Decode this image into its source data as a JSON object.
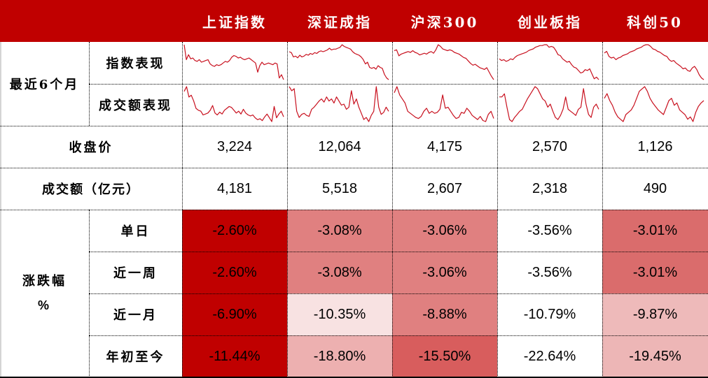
{
  "header": {
    "columns": [
      "上证指数",
      "深证成指",
      "沪深300",
      "创业板指",
      "科创50"
    ]
  },
  "recent6m": {
    "label": "最近6个月",
    "index_label": "指数表现",
    "volume_label": "成交额表现"
  },
  "rows": {
    "close": {
      "label": "收盘价",
      "values": [
        "3,224",
        "12,064",
        "4,175",
        "2,570",
        "1,126"
      ]
    },
    "turnover": {
      "label": "成交额（亿元）",
      "values": [
        "4,181",
        "5,518",
        "2,607",
        "2,318",
        "490"
      ]
    }
  },
  "change": {
    "label_line1": "涨跌幅",
    "label_line2": "%",
    "periods": [
      {
        "label": "单日",
        "values": [
          "-2.60%",
          "-3.08%",
          "-3.06%",
          "-3.56%",
          "-3.01%"
        ],
        "colors": [
          "#C00000",
          "#E08080",
          "#E08080",
          "#FFFFFF",
          "#DA6C6C"
        ]
      },
      {
        "label": "近一周",
        "values": [
          "-2.60%",
          "-3.08%",
          "-3.06%",
          "-3.56%",
          "-3.01%"
        ],
        "colors": [
          "#C00000",
          "#E08080",
          "#E08080",
          "#FFFFFF",
          "#DA6C6C"
        ]
      },
      {
        "label": "近一月",
        "values": [
          "-6.90%",
          "-10.35%",
          "-8.88%",
          "-10.79%",
          "-9.87%"
        ],
        "colors": [
          "#C00000",
          "#F8E2E2",
          "#E08080",
          "#FFFFFF",
          "#EEBABA"
        ]
      },
      {
        "label": "年初至今",
        "values": [
          "-11.44%",
          "-18.80%",
          "-15.50%",
          "-22.64%",
          "-19.45%"
        ],
        "colors": [
          "#C00000",
          "#EDB0B0",
          "#D85D5D",
          "#FFFFFF",
          "#EDB6B6"
        ]
      }
    ]
  },
  "colors": {
    "header_bg": "#C00000",
    "sparkline": "#C8101E"
  },
  "sparklines": {
    "index": [
      [
        2,
        20,
        14,
        19,
        18,
        21,
        22,
        20,
        23,
        22,
        21,
        20,
        25,
        27,
        28,
        26,
        27,
        26,
        24,
        22,
        23,
        21,
        17,
        15,
        16,
        18,
        17,
        19,
        20,
        19,
        18,
        20,
        22,
        24,
        35,
        27,
        23,
        26,
        25,
        24,
        25,
        26,
        24,
        25,
        42,
        38,
        44
      ],
      [
        12,
        13,
        18,
        17,
        19,
        16,
        18,
        17,
        15,
        16,
        14,
        15,
        13,
        14,
        12,
        11,
        12,
        11,
        10,
        8,
        10,
        9,
        9,
        8,
        7,
        4,
        6,
        7,
        8,
        9,
        12,
        14,
        15,
        16,
        18,
        21,
        26,
        24,
        30,
        31,
        30,
        32,
        28,
        30,
        31,
        38,
        42,
        44
      ],
      [
        10,
        9,
        16,
        14,
        13,
        12,
        11,
        12,
        10,
        12,
        13,
        15,
        14,
        13,
        14,
        12,
        11,
        13,
        9,
        3,
        5,
        8,
        9,
        10,
        9,
        10,
        12,
        13,
        14,
        16,
        18,
        19,
        22,
        25,
        27,
        26,
        28,
        30,
        31,
        32,
        30,
        35,
        40,
        44
      ],
      [
        20,
        22,
        21,
        23,
        22,
        20,
        21,
        18,
        16,
        15,
        14,
        13,
        12,
        10,
        9,
        8,
        6,
        5,
        4,
        4,
        3,
        3,
        6,
        5,
        6,
        10,
        15,
        16,
        20,
        22,
        24,
        23,
        27,
        30,
        31,
        34,
        37,
        36,
        33,
        34,
        32,
        38,
        44,
        42,
        45
      ],
      [
        14,
        12,
        18,
        20,
        19,
        22,
        20,
        19,
        17,
        16,
        15,
        13,
        12,
        11,
        9,
        8,
        7,
        5,
        4,
        4,
        6,
        9,
        10,
        12,
        13,
        15,
        17,
        18,
        22,
        24,
        23,
        26,
        28,
        30,
        33,
        32,
        35,
        36,
        32,
        30,
        34,
        40,
        44,
        46
      ]
    ],
    "volume": [
      [
        10,
        5,
        16,
        14,
        20,
        28,
        30,
        31,
        35,
        34,
        33,
        30,
        25,
        33,
        35,
        32,
        34,
        30,
        28,
        26,
        27,
        30,
        33,
        31,
        34,
        29,
        33,
        35,
        36,
        35,
        38,
        40,
        39,
        41,
        37,
        34,
        38,
        42,
        26,
        38,
        34,
        31,
        37
      ],
      [
        8,
        12,
        10,
        32,
        38,
        35,
        34,
        36,
        37,
        30,
        28,
        25,
        22,
        20,
        23,
        18,
        22,
        20,
        24,
        18,
        22,
        26,
        25,
        30,
        28,
        12,
        25,
        20,
        28,
        34,
        40,
        38,
        42,
        36,
        32,
        8,
        28,
        35,
        33,
        28,
        32
      ],
      [
        10,
        4,
        12,
        16,
        20,
        28,
        30,
        32,
        34,
        35,
        33,
        28,
        25,
        30,
        28,
        30,
        29,
        26,
        12,
        25,
        24,
        28,
        32,
        35,
        34,
        29,
        30,
        25,
        28,
        32,
        34,
        36,
        33,
        37,
        38,
        31,
        28,
        35
      ],
      [
        18,
        18,
        15,
        28,
        40,
        42,
        38,
        35,
        32,
        30,
        25,
        20,
        16,
        12,
        8,
        10,
        15,
        20,
        22,
        28,
        25,
        32,
        38,
        40,
        36,
        30,
        18,
        30,
        32,
        34,
        36,
        30,
        28,
        10,
        25,
        35,
        38,
        28,
        25,
        30
      ],
      [
        18,
        14,
        20,
        24,
        30,
        34,
        36,
        38,
        32,
        30,
        28,
        24,
        18,
        12,
        10,
        8,
        12,
        18,
        22,
        25,
        28,
        30,
        32,
        26,
        20,
        18,
        24,
        22,
        28,
        30,
        32,
        36,
        34,
        38,
        30,
        25,
        22,
        20
      ]
    ]
  }
}
